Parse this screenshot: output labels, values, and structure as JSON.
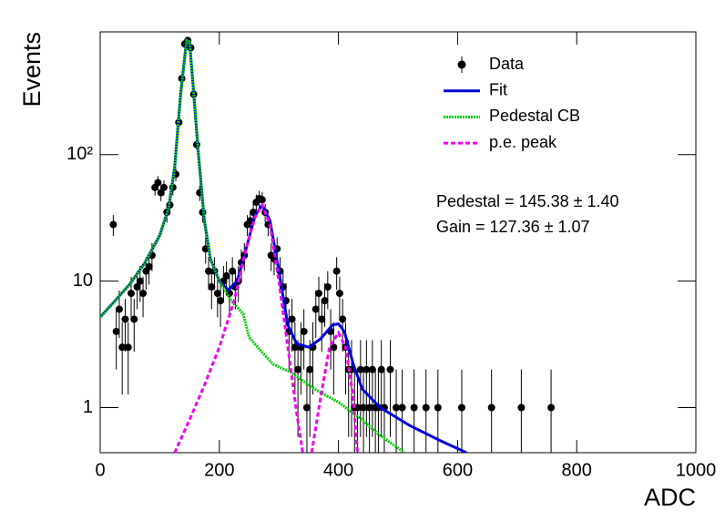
{
  "chart_data": {
    "type": "scatter",
    "xlabel": "ADC",
    "ylabel": "Events",
    "xlim": [
      0,
      1000
    ],
    "xticks": [
      0,
      200,
      400,
      600,
      800,
      1000
    ],
    "ylim": [
      0.44,
      935
    ],
    "yscale": "log",
    "yticks": [
      1,
      10,
      {
        "value": 100,
        "label": "10²"
      }
    ],
    "legend": "top-right",
    "annotations": [
      "Pedestal = 145.38 ± 1.40",
      "Gain = 127.36 ± 1.07"
    ],
    "series": [
      {
        "name": "Data",
        "style": "points",
        "color": "#000000",
        "x": [
          22,
          27,
          32,
          37,
          42,
          47,
          52,
          57,
          62,
          67,
          72,
          77,
          82,
          87,
          92,
          97,
          102,
          107,
          112,
          117,
          122,
          127,
          132,
          137,
          142,
          147,
          152,
          157,
          162,
          167,
          172,
          177,
          182,
          187,
          192,
          197,
          202,
          207,
          212,
          217,
          222,
          227,
          232,
          237,
          242,
          247,
          252,
          257,
          262,
          267,
          272,
          277,
          282,
          287,
          292,
          297,
          302,
          307,
          312,
          317,
          322,
          327,
          332,
          337,
          342,
          347,
          352,
          357,
          362,
          367,
          372,
          377,
          382,
          387,
          392,
          397,
          402,
          407,
          412,
          417,
          422,
          427,
          432,
          437,
          442,
          447,
          452,
          457,
          462,
          467,
          472,
          477,
          487,
          497,
          507,
          527,
          547,
          567,
          607,
          657,
          707,
          757
        ],
        "values": [
          28,
          4,
          6,
          3,
          5,
          3,
          8,
          5,
          9,
          10,
          8,
          12,
          13,
          16,
          55,
          60,
          50,
          55,
          35,
          40,
          55,
          70,
          180,
          400,
          750,
          800,
          700,
          300,
          120,
          50,
          35,
          18,
          12,
          9,
          12,
          8,
          7,
          10,
          11,
          8,
          12,
          9,
          10,
          14,
          16,
          28,
          30,
          35,
          42,
          45,
          44,
          35,
          28,
          16,
          15,
          18,
          12,
          9,
          7,
          4,
          5,
          3,
          2,
          3,
          4,
          1,
          2,
          3,
          6,
          8,
          5,
          7,
          9,
          4,
          3,
          12,
          8,
          5,
          3,
          2,
          2,
          1,
          1,
          2,
          1,
          2,
          1,
          2,
          1,
          1,
          2,
          1,
          2,
          1,
          1,
          1,
          1,
          1,
          1,
          1,
          1,
          1
        ]
      },
      {
        "name": "Fit",
        "style": "solid",
        "color": "#0000dd",
        "x": [
          0,
          25,
          50,
          75,
          100,
          115,
          125,
          135,
          145,
          150,
          155,
          165,
          175,
          185,
          200,
          215,
          230,
          245,
          260,
          272,
          285,
          300,
          315,
          330,
          350,
          370,
          390,
          400,
          410,
          425,
          440,
          470,
          520,
          570,
          615
        ],
        "values": [
          5.2,
          7,
          9.5,
          14,
          23,
          38,
          80,
          300,
          800,
          780,
          400,
          100,
          30,
          15,
          10,
          8.5,
          10,
          18,
          33,
          40,
          30,
          12,
          4.5,
          3.2,
          3,
          3.5,
          4.5,
          4.6,
          4,
          2.2,
          1.4,
          1,
          0.72,
          0.55,
          0.44
        ]
      },
      {
        "name": "Pedestal CB",
        "style": "dotted",
        "color": "#00cc00",
        "x": [
          0,
          25,
          50,
          75,
          100,
          115,
          125,
          135,
          145,
          150,
          155,
          165,
          175,
          185,
          200,
          220,
          240,
          250,
          270,
          290,
          320,
          360,
          400,
          440,
          470,
          500,
          510
        ],
        "values": [
          5.2,
          7,
          9.5,
          14,
          23,
          38,
          80,
          300,
          800,
          780,
          400,
          100,
          30,
          15,
          10,
          7,
          5.5,
          3.6,
          2.8,
          2.2,
          1.9,
          1.4,
          1.1,
          0.8,
          0.6,
          0.48,
          0.44
        ]
      },
      {
        "name": "p.e. peak",
        "style": "dashed",
        "color": "#ee00ee",
        "x": [
          125,
          150,
          175,
          200,
          225,
          245,
          260,
          272,
          285,
          300,
          315,
          330,
          340,
          null,
          355,
          370,
          385,
          400,
          412,
          425,
          432
        ],
        "values": [
          0.44,
          0.8,
          1.5,
          3,
          7,
          18,
          32,
          40,
          28,
          10,
          3,
          0.9,
          0.44,
          null,
          0.44,
          1.2,
          3,
          3.9,
          3,
          1.2,
          0.44
        ]
      }
    ]
  }
}
